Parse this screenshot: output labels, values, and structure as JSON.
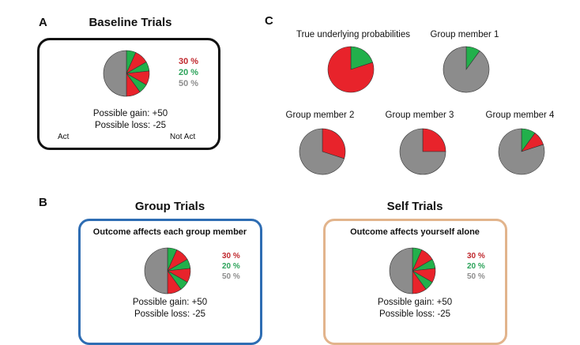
{
  "colors": {
    "red": "#e8232b",
    "green": "#22b04b",
    "gray": "#8c8c8c",
    "black_frame": "#111111",
    "blue_frame": "#2e6db3",
    "tan_frame": "#e2b48c",
    "pct_red": "#c0282d",
    "pct_green": "#2ca35a",
    "pct_gray": "#8e8e8e"
  },
  "panelA": {
    "letter": "A",
    "title": "Baseline Trials",
    "percentages": [
      "30 %",
      "20 %",
      "50 %"
    ],
    "gain": "Possible gain: +50",
    "loss": "Possible loss: -25",
    "act": "Act",
    "not_act": "Not Act",
    "pie_values": [
      0.3,
      0.2,
      0.5
    ]
  },
  "panelB": {
    "letter": "B",
    "group": {
      "title": "Group Trials",
      "subtitle": "Outcome affects each group member",
      "percentages": [
        "30 %",
        "20 %",
        "50 %"
      ],
      "gain": "Possible gain: +50",
      "loss": "Possible loss: -25",
      "pie_values": [
        0.3,
        0.2,
        0.5
      ]
    },
    "self": {
      "title": "Self Trials",
      "subtitle": "Outcome affects yourself alone",
      "percentages": [
        "30 %",
        "20 %",
        "50 %"
      ],
      "gain": "Possible gain: +50",
      "loss": "Possible loss: -25",
      "pie_values": [
        0.3,
        0.2,
        0.5
      ]
    }
  },
  "panelC": {
    "letter": "C",
    "pies": [
      {
        "label": "True underlying probabilities",
        "red": 0.8,
        "green": 0.2,
        "gray": 0.0
      },
      {
        "label": "Group member 1",
        "red": 0.0,
        "green": 0.1,
        "gray": 0.9
      },
      {
        "label": "Group member 2",
        "red": 0.3,
        "green": 0.0,
        "gray": 0.7
      },
      {
        "label": "Group member 3",
        "red": 0.25,
        "green": 0.0,
        "gray": 0.75
      },
      {
        "label": "Group member 4",
        "red": 0.1,
        "green": 0.1,
        "gray": 0.8
      }
    ]
  }
}
